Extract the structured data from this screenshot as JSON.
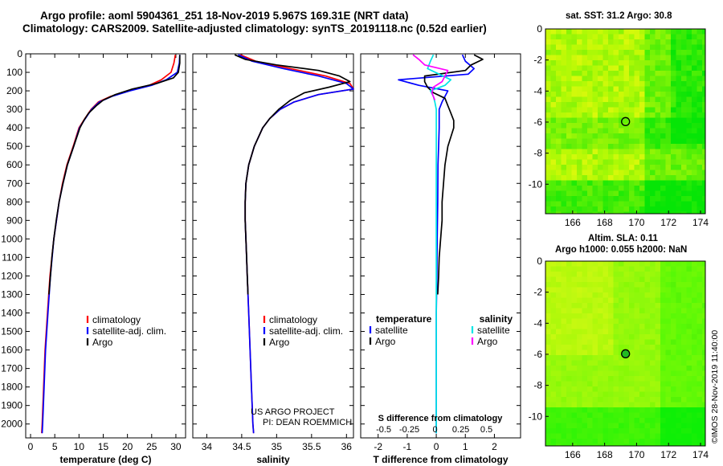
{
  "header": {
    "line1": "Argo profile: aoml 5904361_251 18-Nov-2019 5.967S 169.31E (NRT data)",
    "line2": "Climatology: CARS2009. Satellite-adjusted climatology: synTS_20191118.nc (0.52d earlier)"
  },
  "side": {
    "sst_title": "sat. SST: 31.2 Argo: 30.8",
    "sla_title": "Altim. SLA: 0.11",
    "sla_sub": "Argo h1000: 0.055 h2000: NaN",
    "credit": "©IMOS 28-Nov-2019 11:40:00"
  },
  "colors": {
    "climatology": "#ff0000",
    "satellite": "#0000ff",
    "argo": "#000000",
    "sal_satellite": "#00e5e5",
    "sal_argo": "#ff00ff"
  },
  "chart_data": [
    {
      "type": "line",
      "name": "temperature",
      "xlabel": "temperature (deg C)",
      "xlim": [
        -1,
        32
      ],
      "xticks": [
        0,
        5,
        10,
        15,
        20,
        25,
        30
      ],
      "ylim": [
        0,
        2075
      ],
      "yticks": [
        0,
        100,
        200,
        300,
        400,
        500,
        600,
        700,
        800,
        900,
        1000,
        1100,
        1200,
        1300,
        1400,
        1500,
        1600,
        1700,
        1800,
        1900,
        2000
      ],
      "legend": [
        "climatology",
        "satellite-adj. clim.",
        "Argo"
      ],
      "series": [
        {
          "name": "climatology",
          "color": "#ff0000",
          "depth": [
            5,
            50,
            100,
            140,
            170,
            200,
            230,
            260,
            300,
            350,
            400,
            500,
            600,
            700,
            800,
            1000,
            1200,
            1400,
            1600,
            1800,
            2000,
            2050
          ],
          "values": [
            29.9,
            29.6,
            29.0,
            27.0,
            24.5,
            20.0,
            16.5,
            14.0,
            12.5,
            11.2,
            10.0,
            8.8,
            7.5,
            6.6,
            5.9,
            4.8,
            4.0,
            3.5,
            3.0,
            2.7,
            2.4,
            2.3
          ]
        },
        {
          "name": "satellite-adj. clim.",
          "color": "#0000ff",
          "depth": [
            5,
            50,
            100,
            140,
            170,
            200,
            230,
            260,
            300,
            350,
            400,
            500,
            600,
            700,
            800,
            1000,
            1200,
            1400,
            1600,
            1800,
            2000,
            2050
          ],
          "values": [
            30.8,
            30.7,
            30.3,
            28.0,
            25.0,
            20.5,
            16.8,
            14.2,
            12.6,
            11.3,
            10.1,
            8.9,
            7.6,
            6.7,
            5.9,
            4.8,
            4.1,
            3.6,
            3.1,
            2.8,
            2.5,
            2.4
          ]
        },
        {
          "name": "Argo",
          "color": "#000000",
          "depth": [
            5,
            50,
            100,
            130,
            160,
            190,
            220,
            250,
            280,
            320,
            360,
            400,
            500,
            600,
            700,
            800,
            900,
            1000,
            1100,
            1200,
            1300
          ],
          "values": [
            30.8,
            30.8,
            30.5,
            29.5,
            26.0,
            21.0,
            17.5,
            15.0,
            13.6,
            12.0,
            11.0,
            10.2,
            8.9,
            7.6,
            6.7,
            5.9,
            5.3,
            4.8,
            4.4,
            4.1,
            3.8
          ]
        }
      ]
    },
    {
      "type": "line",
      "name": "salinity",
      "xlabel": "salinity",
      "xlim": [
        33.8,
        36.1
      ],
      "xticks": [
        34,
        34.5,
        35,
        35.5,
        36
      ],
      "xticklabels": [
        "34",
        "34.5",
        "35",
        "35.5",
        "36"
      ],
      "ylim": [
        0,
        2075
      ],
      "legend": [
        "climatology",
        "satellite-adj. clim.",
        "Argo"
      ],
      "annotation": [
        "US ARGO PROJECT",
        "PI: DEAN ROEMMICH"
      ],
      "series": [
        {
          "name": "climatology",
          "color": "#ff0000",
          "depth": [
            5,
            40,
            80,
            120,
            160,
            190,
            220,
            260,
            300,
            350,
            400,
            500,
            600,
            700,
            800,
            900,
            1000,
            1200,
            1400,
            1600,
            1800,
            2000,
            2050
          ],
          "values": [
            34.48,
            34.7,
            35.2,
            35.7,
            36.05,
            36.1,
            35.6,
            35.25,
            35.05,
            34.9,
            34.8,
            34.68,
            34.6,
            34.56,
            34.55,
            34.55,
            34.56,
            34.58,
            34.6,
            34.62,
            34.64,
            34.66,
            34.67
          ]
        },
        {
          "name": "satellite-adj. clim.",
          "color": "#0000ff",
          "depth": [
            5,
            40,
            80,
            120,
            160,
            190,
            220,
            260,
            300,
            350,
            400,
            500,
            600,
            700,
            800,
            900,
            1000,
            1200,
            1400,
            1600,
            1800,
            2000,
            2050
          ],
          "values": [
            34.45,
            34.65,
            35.1,
            35.6,
            36.0,
            36.1,
            35.6,
            35.25,
            35.05,
            34.9,
            34.8,
            34.68,
            34.6,
            34.56,
            34.55,
            34.55,
            34.56,
            34.58,
            34.6,
            34.62,
            34.64,
            34.66,
            34.67
          ]
        },
        {
          "name": "Argo",
          "color": "#000000",
          "depth": [
            5,
            30,
            60,
            90,
            120,
            150,
            180,
            210,
            250,
            300,
            350,
            400,
            500,
            600,
            700,
            800,
            900,
            1000,
            1100,
            1200,
            1300
          ],
          "values": [
            34.4,
            34.55,
            35.0,
            35.6,
            35.9,
            36.05,
            35.75,
            35.4,
            35.2,
            35.03,
            34.9,
            34.8,
            34.68,
            34.6,
            34.56,
            34.55,
            34.55,
            34.56,
            34.57,
            34.58,
            34.59
          ]
        }
      ]
    },
    {
      "type": "line",
      "name": "difference",
      "xlabel": "T difference from climatology",
      "xlim": [
        -2.6,
        2.9
      ],
      "xticks": [
        -2,
        -1,
        0,
        1,
        2
      ],
      "x2label": "S difference from climatology",
      "x2ticks": [
        -0.5,
        -0.25,
        0,
        0.25,
        0.5
      ],
      "x2ticklabels": [
        "-0.5",
        "-0.25",
        "0",
        "0.25",
        "0.5"
      ],
      "ylim": [
        0,
        2075
      ],
      "legend_titles": [
        "temperature",
        "salinity"
      ],
      "legend": [
        "satellite",
        "Argo",
        "satellite",
        "Argo"
      ],
      "series": [
        {
          "name": "T satellite",
          "color": "#0000ff",
          "depth": [
            5,
            40,
            80,
            110,
            140,
            170,
            200,
            230,
            260,
            300,
            400,
            500,
            600,
            800,
            1000,
            1200,
            1400,
            1600,
            1800,
            2000,
            2050
          ],
          "values": [
            0.9,
            1.0,
            1.3,
            1.1,
            -1.3,
            -0.6,
            0.4,
            0.3,
            0.2,
            0.1,
            0.1,
            0.08,
            0.06,
            0.05,
            0.03,
            0.02,
            0.0,
            0.0,
            0.0,
            0.0,
            0.0
          ]
        },
        {
          "name": "T Argo",
          "color": "#000000",
          "depth": [
            5,
            30,
            60,
            90,
            120,
            150,
            180,
            210,
            240,
            280,
            320,
            360,
            400,
            500,
            600,
            700,
            800,
            900,
            1000,
            1100,
            1200,
            1300
          ],
          "values": [
            1.3,
            1.6,
            1.2,
            1.0,
            -0.4,
            -0.4,
            -0.3,
            -0.1,
            0.3,
            0.4,
            0.5,
            0.6,
            0.6,
            0.4,
            0.3,
            0.25,
            0.2,
            0.2,
            0.15,
            0.1,
            0.08,
            0.05
          ]
        },
        {
          "name": "S satellite",
          "color": "#00e5e5",
          "depth": [
            5,
            40,
            80,
            110,
            140,
            170,
            200,
            230,
            260,
            300,
            400,
            500,
            600,
            800,
            1000,
            1200,
            1400,
            1600,
            1800,
            2000,
            2050
          ],
          "values": [
            -0.1,
            -0.2,
            -0.3,
            0.1,
            0.5,
            0.3,
            -0.2,
            -0.1,
            -0.05,
            0.0,
            0.0,
            0.0,
            0.0,
            0.0,
            0.0,
            0.0,
            0.0,
            0.0,
            0.0,
            0.0,
            0.0
          ]
        },
        {
          "name": "S Argo",
          "color": "#ff00ff",
          "depth": [
            5,
            30,
            60,
            90,
            120,
            150,
            180,
            210,
            250
          ],
          "values": [
            -0.8,
            -0.6,
            -0.4,
            0.4,
            0.3,
            0.2,
            -0.1,
            -0.15,
            -0.05
          ]
        }
      ]
    },
    {
      "type": "heatmap",
      "name": "sst_map",
      "title": "sat. SST: 31.2 Argo: 30.8",
      "xlim": [
        164.3,
        174.3
      ],
      "xticks": [
        166,
        168,
        170,
        172,
        174
      ],
      "ylim": [
        -11.9,
        0
      ],
      "yticks": [
        0,
        -2,
        -4,
        -6,
        -8,
        -10
      ],
      "float_position": [
        169.31,
        -5.967
      ]
    },
    {
      "type": "heatmap",
      "name": "sla_map",
      "title": "Altim. SLA: 0.11",
      "xlim": [
        164.3,
        174.3
      ],
      "xticks": [
        166,
        168,
        170,
        172,
        174
      ],
      "ylim": [
        -11.9,
        0
      ],
      "yticks": [
        0,
        -2,
        -4,
        -6,
        -8,
        -10
      ],
      "float_position": [
        169.31,
        -5.967
      ]
    }
  ]
}
